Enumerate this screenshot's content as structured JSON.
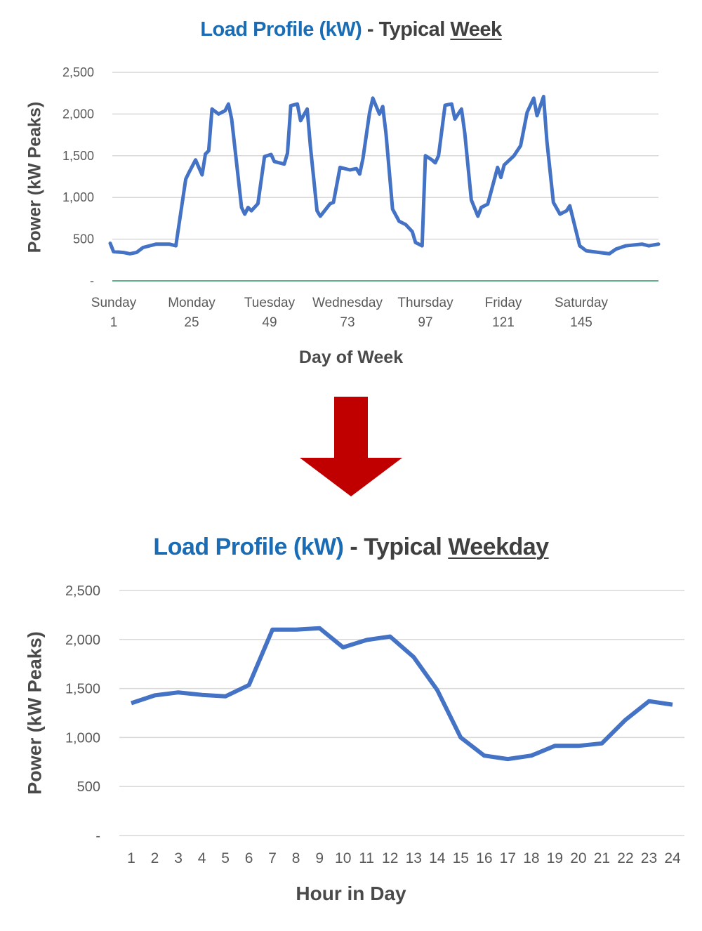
{
  "chart_data": [
    {
      "type": "line",
      "title": {
        "main": "Load Profile (kW)",
        "sep": " - Typical ",
        "emph": "Week"
      },
      "xlabel": "Day of Week",
      "ylabel": "Power (kW Peaks)",
      "ylim": [
        0,
        2500
      ],
      "xlim": [
        1,
        168
      ],
      "grid": true,
      "y_ticks": [
        {
          "value": 0,
          "label": "-"
        },
        {
          "value": 500,
          "label": "500"
        },
        {
          "value": 1000,
          "label": "1,000"
        },
        {
          "value": 1500,
          "label": "1,500"
        },
        {
          "value": 2000,
          "label": "2,000"
        },
        {
          "value": 2500,
          "label": "2,500"
        }
      ],
      "x_ticks": [
        {
          "value": 1,
          "day": "Sunday",
          "label": "1"
        },
        {
          "value": 25,
          "day": "Monday",
          "label": "25"
        },
        {
          "value": 49,
          "day": "Tuesday",
          "label": "49"
        },
        {
          "value": 73,
          "day": "Wednesday",
          "label": "73"
        },
        {
          "value": 97,
          "day": "Thursday",
          "label": "97"
        },
        {
          "value": 121,
          "day": "Friday",
          "label": "121"
        },
        {
          "value": 145,
          "day": "Saturday",
          "label": "145"
        }
      ],
      "series": [
        {
          "color": "#4472c4",
          "x": [
            1,
            2,
            5,
            7,
            9,
            11,
            15,
            19,
            21,
            24,
            25,
            27,
            29,
            30,
            31,
            32,
            34,
            36,
            37,
            38,
            41,
            42,
            43,
            44,
            46,
            48,
            50,
            51,
            54,
            55,
            56,
            58,
            59,
            61,
            62,
            64,
            65,
            68,
            69,
            71,
            74,
            76,
            77,
            78,
            80,
            81,
            83,
            84,
            85,
            87,
            89,
            91,
            93,
            94,
            96,
            97,
            99,
            100,
            101,
            103,
            105,
            106,
            108,
            109,
            111,
            113,
            114,
            116,
            119,
            120,
            121,
            124,
            126,
            128,
            130,
            131,
            133,
            134,
            136,
            138,
            140,
            141,
            144,
            146,
            150,
            153,
            155,
            158,
            163,
            165,
            168
          ],
          "y": [
            450,
            350,
            340,
            325,
            340,
            400,
            440,
            440,
            420,
            1220,
            1300,
            1450,
            1270,
            1520,
            1560,
            2060,
            2000,
            2040,
            2120,
            1940,
            880,
            800,
            880,
            840,
            925,
            1490,
            1515,
            1430,
            1400,
            1530,
            2100,
            2120,
            1920,
            2060,
            1600,
            840,
            775,
            925,
            940,
            1360,
            1330,
            1345,
            1280,
            1470,
            2020,
            2190,
            2000,
            2090,
            1770,
            860,
            715,
            675,
            590,
            460,
            420,
            1500,
            1450,
            1415,
            1500,
            2105,
            2120,
            1940,
            2060,
            1770,
            970,
            775,
            880,
            920,
            1360,
            1240,
            1390,
            1500,
            1620,
            2020,
            2190,
            1980,
            2210,
            1680,
            940,
            800,
            840,
            900,
            420,
            360,
            340,
            325,
            380,
            420,
            440,
            420,
            440
          ]
        }
      ],
      "zero_line_color": "#5fb38a"
    },
    {
      "type": "line",
      "title": {
        "main": "Load Profile (kW)",
        "sep": " - Typical ",
        "emph": "Weekday"
      },
      "xlabel": "Hour in Day",
      "ylabel": "Power (kW Peaks)",
      "ylim": [
        0,
        2500
      ],
      "grid": true,
      "y_ticks": [
        {
          "value": 0,
          "label": "-"
        },
        {
          "value": 500,
          "label": "500"
        },
        {
          "value": 1000,
          "label": "1,000"
        },
        {
          "value": 1500,
          "label": "1,500"
        },
        {
          "value": 2000,
          "label": "2,000"
        },
        {
          "value": 2500,
          "label": "2,500"
        }
      ],
      "categories": [
        "1",
        "2",
        "3",
        "4",
        "5",
        "6",
        "7",
        "8",
        "9",
        "10",
        "11",
        "12",
        "13",
        "14",
        "15",
        "16",
        "17",
        "18",
        "19",
        "20",
        "21",
        "22",
        "23",
        "24"
      ],
      "series": [
        {
          "color": "#4472c4",
          "values": [
            1350,
            1430,
            1460,
            1435,
            1420,
            1535,
            2100,
            2100,
            2115,
            1920,
            1995,
            2030,
            1820,
            1485,
            1000,
            815,
            780,
            815,
            915,
            915,
            940,
            1180,
            1370,
            1335
          ]
        }
      ]
    }
  ],
  "arrow": {
    "color": "#c00000",
    "icon": "down-arrow-icon"
  }
}
